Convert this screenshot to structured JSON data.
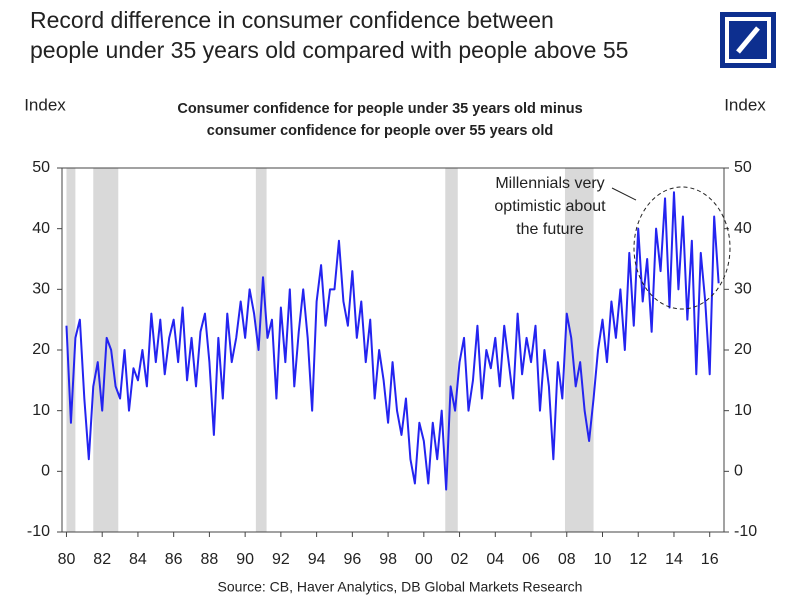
{
  "chart_data": {
    "type": "line",
    "title": [
      "Record difference in consumer confidence between",
      "people under 35 years old compared with people above 55"
    ],
    "subtitle": [
      "Consumer confidence for people under 35 years old minus",
      "consumer confidence for people over 55 years old"
    ],
    "y_label": "Index",
    "y2_label": "Index",
    "source": "Source: CB, Haver Analytics, DB Global Markets Research",
    "annotation": [
      "Millennials very",
      "optimistic about",
      "the future"
    ],
    "x": [
      1980,
      1980.25,
      1980.5,
      1980.75,
      1981,
      1981.25,
      1981.5,
      1981.75,
      1982,
      1982.25,
      1982.5,
      1982.75,
      1983,
      1983.25,
      1983.5,
      1983.75,
      1984,
      1984.25,
      1984.5,
      1984.75,
      1985,
      1985.25,
      1985.5,
      1985.75,
      1986,
      1986.25,
      1986.5,
      1986.75,
      1987,
      1987.25,
      1987.5,
      1987.75,
      1988,
      1988.25,
      1988.5,
      1988.75,
      1989,
      1989.25,
      1989.5,
      1989.75,
      1990,
      1990.25,
      1990.5,
      1990.75,
      1991,
      1991.25,
      1991.5,
      1991.75,
      1992,
      1992.25,
      1992.5,
      1992.75,
      1993,
      1993.25,
      1993.5,
      1993.75,
      1994,
      1994.25,
      1994.5,
      1994.75,
      1995,
      1995.25,
      1995.5,
      1995.75,
      1996,
      1996.25,
      1996.5,
      1996.75,
      1997,
      1997.25,
      1997.5,
      1997.75,
      1998,
      1998.25,
      1998.5,
      1998.75,
      1999,
      1999.25,
      1999.5,
      1999.75,
      2000,
      2000.25,
      2000.5,
      2000.75,
      2001,
      2001.25,
      2001.5,
      2001.75,
      2002,
      2002.25,
      2002.5,
      2002.75,
      2003,
      2003.25,
      2003.5,
      2003.75,
      2004,
      2004.25,
      2004.5,
      2004.75,
      2005,
      2005.25,
      2005.5,
      2005.75,
      2006,
      2006.25,
      2006.5,
      2006.75,
      2007,
      2007.25,
      2007.5,
      2007.75,
      2008,
      2008.25,
      2008.5,
      2008.75,
      2009,
      2009.25,
      2009.5,
      2009.75,
      2010,
      2010.25,
      2010.5,
      2010.75,
      2011,
      2011.25,
      2011.5,
      2011.75,
      2012,
      2012.25,
      2012.5,
      2012.75,
      2013,
      2013.25,
      2013.5,
      2013.75,
      2014,
      2014.25,
      2014.5,
      2014.75,
      2015,
      2015.25,
      2015.5,
      2015.75,
      2016,
      2016.25,
      2016.5
    ],
    "series": [
      {
        "name": "Consumer confidence difference",
        "color": "#2424f0",
        "values": [
          24,
          8,
          22,
          25,
          12,
          2,
          14,
          18,
          10,
          22,
          20,
          14,
          12,
          20,
          10,
          17,
          15,
          20,
          14,
          26,
          18,
          25,
          16,
          22,
          25,
          18,
          27,
          15,
          22,
          14,
          23,
          26,
          18,
          6,
          22,
          12,
          26,
          18,
          22,
          28,
          22,
          30,
          26,
          20,
          32,
          22,
          25,
          12,
          27,
          18,
          30,
          14,
          23,
          30,
          22,
          10,
          28,
          34,
          24,
          30,
          30,
          38,
          28,
          24,
          33,
          22,
          28,
          18,
          25,
          12,
          20,
          15,
          8,
          18,
          10,
          6,
          12,
          2,
          -2,
          8,
          5,
          -2,
          8,
          2,
          10,
          -3,
          14,
          10,
          18,
          22,
          10,
          15,
          24,
          12,
          20,
          17,
          22,
          14,
          24,
          18,
          12,
          26,
          16,
          22,
          18,
          24,
          10,
          20,
          14,
          2,
          18,
          12,
          26,
          22,
          14,
          18,
          10,
          5,
          12,
          20,
          25,
          18,
          28,
          22,
          30,
          20,
          36,
          24,
          40,
          28,
          35,
          23,
          40,
          33,
          45,
          27,
          46,
          30,
          42,
          25,
          38,
          16,
          36,
          28,
          16,
          42,
          31
        ]
      }
    ],
    "shaded_periods": [
      [
        1980,
        1980.5
      ],
      [
        1981.5,
        1982.9
      ],
      [
        1990.6,
        1991.2
      ],
      [
        2001.2,
        2001.9
      ],
      [
        2007.9,
        2009.5
      ]
    ],
    "shade_color": "#d9d9d9",
    "xlim": [
      1979.75,
      2016.8
    ],
    "xticks": [
      {
        "value": 1980,
        "label": "80"
      },
      {
        "value": 1982,
        "label": "82"
      },
      {
        "value": 1984,
        "label": "84"
      },
      {
        "value": 1986,
        "label": "86"
      },
      {
        "value": 1988,
        "label": "88"
      },
      {
        "value": 1990,
        "label": "90"
      },
      {
        "value": 1992,
        "label": "92"
      },
      {
        "value": 1994,
        "label": "94"
      },
      {
        "value": 1996,
        "label": "96"
      },
      {
        "value": 1998,
        "label": "98"
      },
      {
        "value": 2000,
        "label": "00"
      },
      {
        "value": 2002,
        "label": "02"
      },
      {
        "value": 2004,
        "label": "04"
      },
      {
        "value": 2006,
        "label": "06"
      },
      {
        "value": 2008,
        "label": "08"
      },
      {
        "value": 2010,
        "label": "10"
      },
      {
        "value": 2012,
        "label": "12"
      },
      {
        "value": 2014,
        "label": "14"
      },
      {
        "value": 2016,
        "label": "16"
      }
    ],
    "ylim": [
      -10,
      50
    ],
    "yticks": [
      -10,
      0,
      10,
      20,
      30,
      40,
      50
    ],
    "y2lim": [
      -10,
      50
    ],
    "y2ticks": [
      -10,
      0,
      10,
      20,
      30,
      40,
      50
    ]
  }
}
